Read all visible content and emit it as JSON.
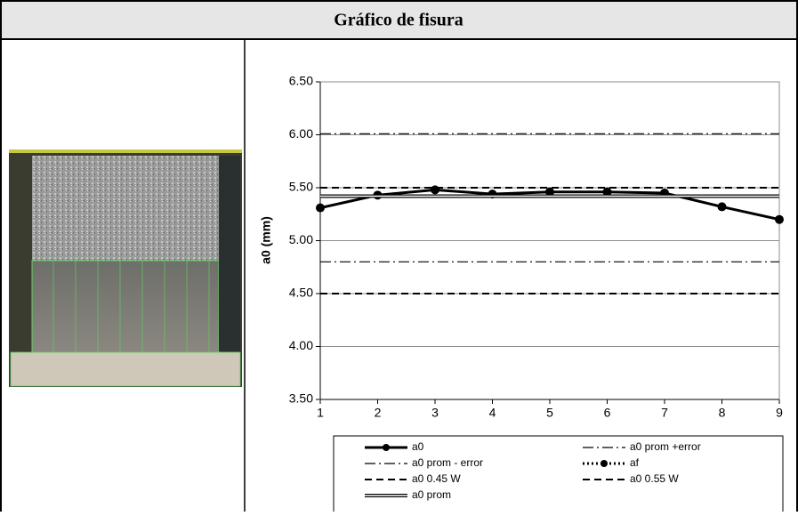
{
  "chart_data": {
    "type": "line",
    "title": "Gráfico de fisura",
    "ylabel": "a0 (mm)",
    "x": [
      1,
      2,
      3,
      4,
      5,
      6,
      7,
      8,
      9
    ],
    "xlim": [
      1,
      9
    ],
    "xticks": [
      1,
      2,
      3,
      4,
      5,
      6,
      7,
      8,
      9
    ],
    "ylim": [
      3.5,
      6.5
    ],
    "yticks": [
      {
        "value": 3.5,
        "label": "3.50"
      },
      {
        "value": 4,
        "label": "4.00"
      },
      {
        "value": 4.5,
        "label": "4.50"
      },
      {
        "value": 5,
        "label": "5.00"
      },
      {
        "value": 5.5,
        "label": "5.50"
      },
      {
        "value": 6,
        "label": "6.00"
      },
      {
        "value": 6.5,
        "label": "6.50"
      }
    ],
    "grid": true,
    "series": [
      {
        "name": "a0",
        "color": "#000000",
        "style": "solid-marker",
        "values": [
          5.31,
          5.43,
          5.48,
          5.44,
          5.46,
          5.46,
          5.45,
          5.32,
          5.2
        ]
      },
      {
        "name": "a0 prom +error",
        "color": "#000000",
        "style": "dash-dot",
        "values": [
          6.01,
          6.01,
          6.01,
          6.01,
          6.01,
          6.01,
          6.01,
          6.01,
          6.01
        ]
      },
      {
        "name": "a0 prom - error",
        "color": "#000000",
        "style": "dash-dot",
        "values": [
          4.8,
          4.8,
          4.8,
          4.8,
          4.8,
          4.8,
          4.8,
          4.8,
          4.8
        ]
      },
      {
        "name": "af",
        "color": "#000000",
        "style": "dotted-marker",
        "values": [
          null,
          null,
          null,
          null,
          null,
          null,
          null,
          null,
          null
        ]
      },
      {
        "name": "a0 0.45 W",
        "color": "#000000",
        "style": "dash",
        "values": [
          4.5,
          4.5,
          4.5,
          4.5,
          4.5,
          4.5,
          4.5,
          4.5,
          4.5
        ]
      },
      {
        "name": "a0 0.55 W",
        "color": "#000000",
        "style": "dash",
        "values": [
          5.5,
          5.5,
          5.5,
          5.5,
          5.5,
          5.5,
          5.5,
          5.5,
          5.5
        ]
      },
      {
        "name": "a0 prom",
        "color": "#000000",
        "style": "double",
        "values": [
          5.42,
          5.42,
          5.42,
          5.42,
          5.42,
          5.42,
          5.42,
          5.42,
          5.42
        ]
      }
    ]
  }
}
